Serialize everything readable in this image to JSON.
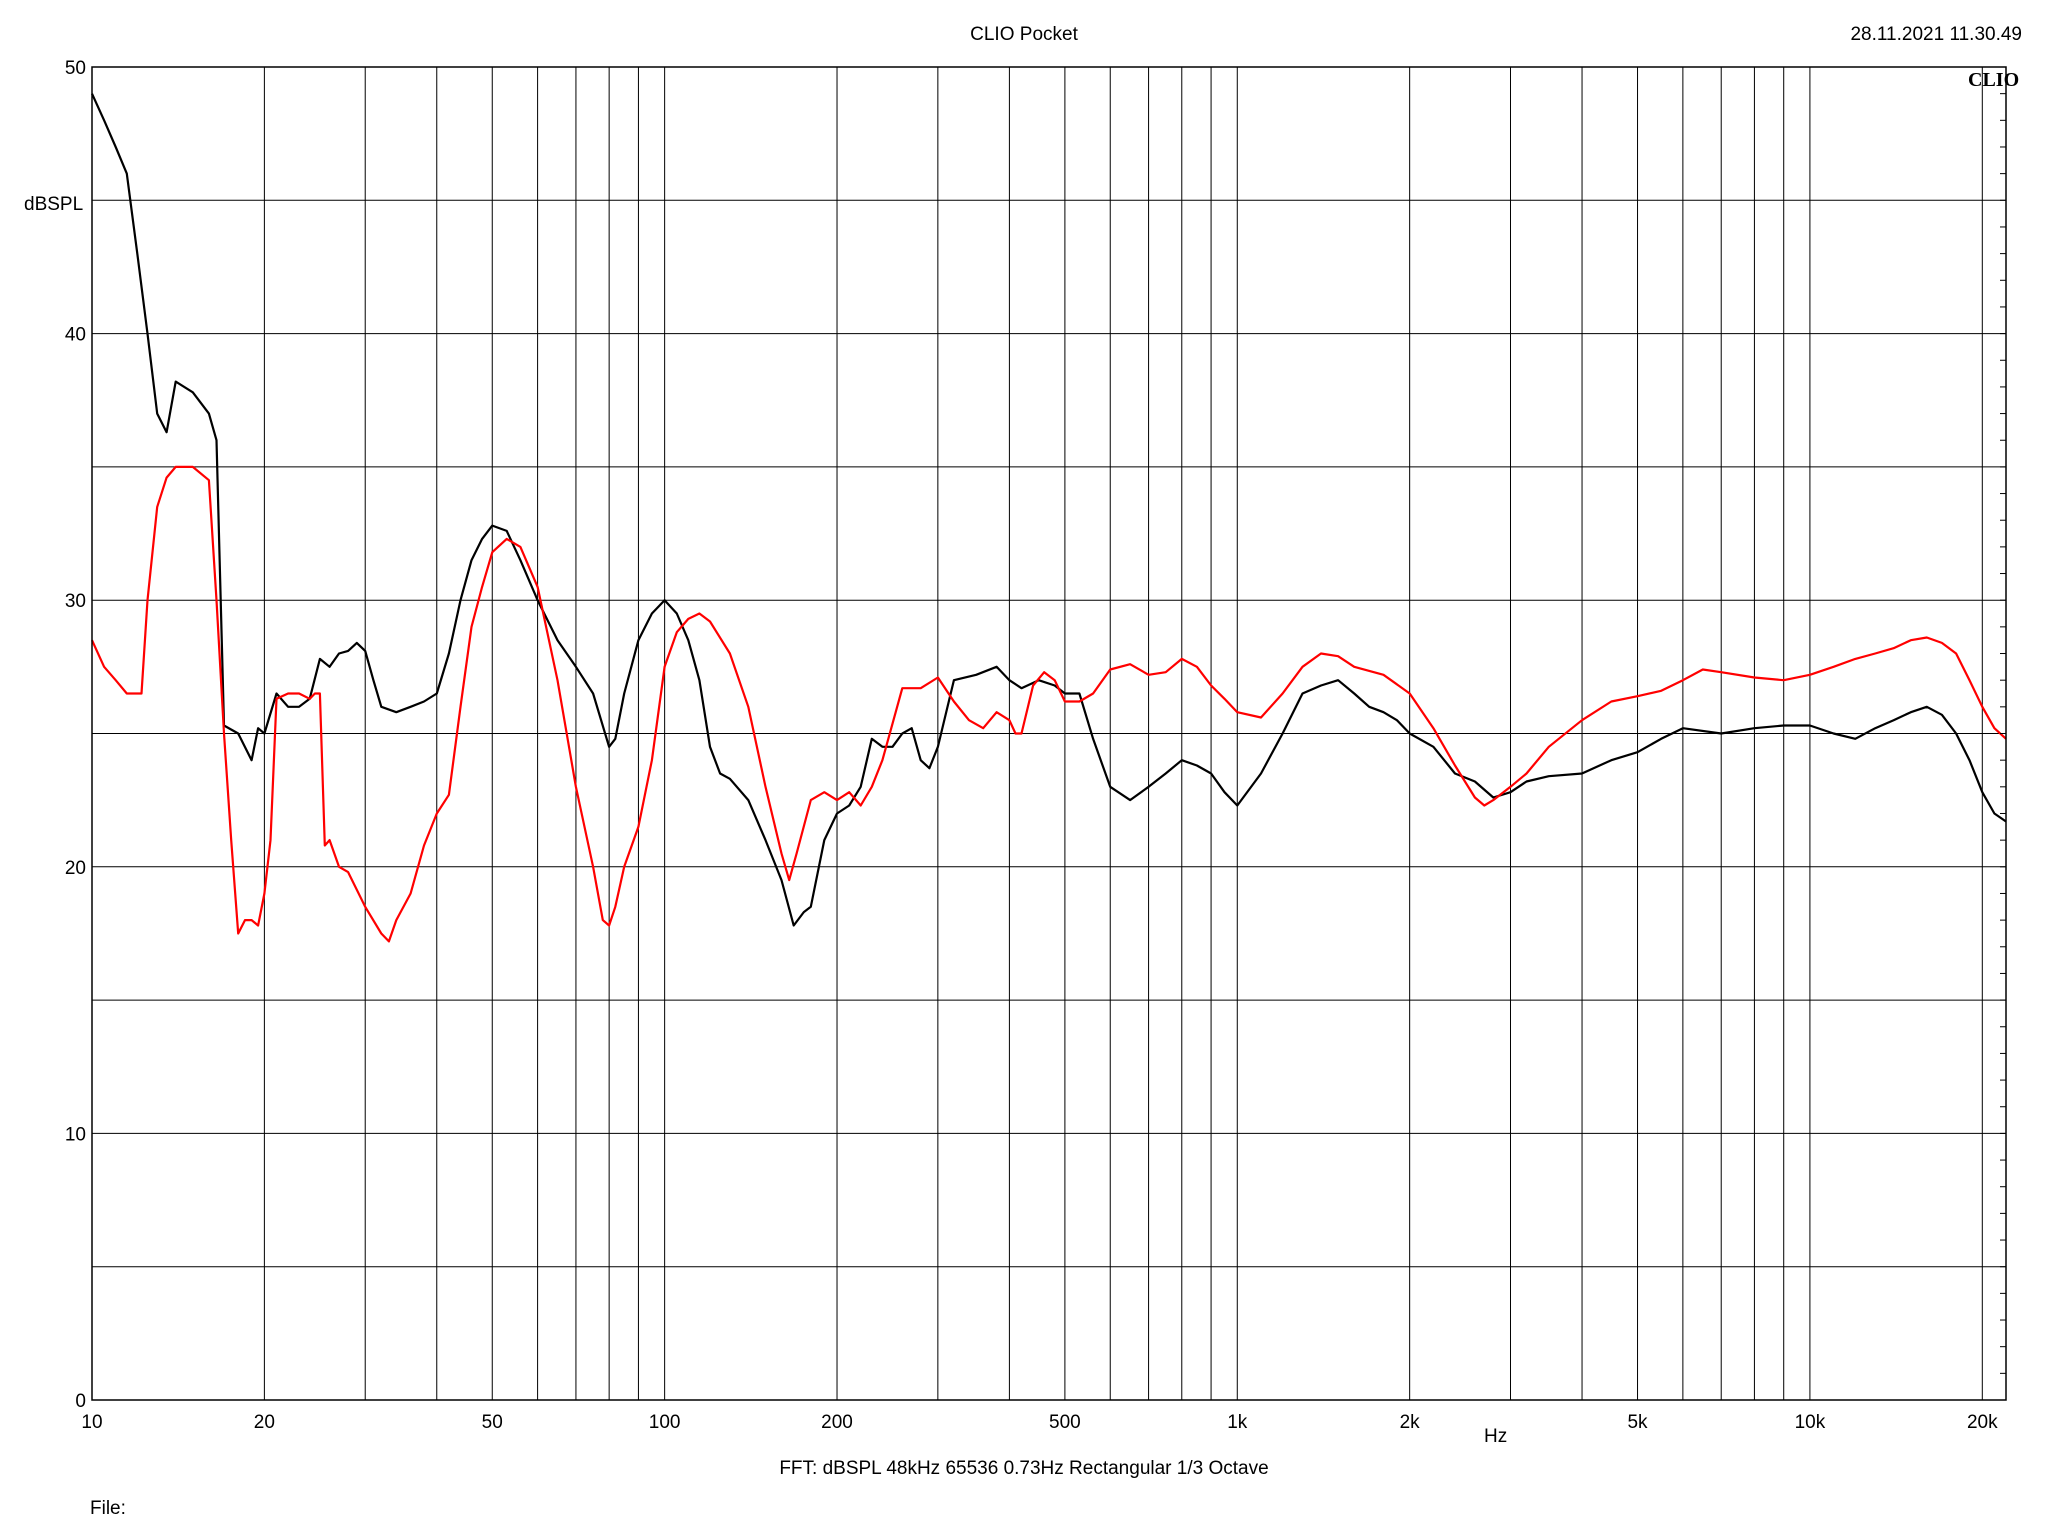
{
  "header": {
    "title": "CLIO Pocket",
    "timestamp": "28.11.2021 11.30.49"
  },
  "brand_label": "CLIO",
  "footer": {
    "settings": "FFT:  dBSPL  48kHz   65536  0.73Hz  Rectangular  1/3 Octave",
    "file_label": "File:"
  },
  "colors": {
    "series_black": "#000000",
    "series_red": "#ff0000",
    "grid": "#000000"
  },
  "chart_data": {
    "type": "line",
    "title": "CLIO Pocket",
    "xlabel": "Hz",
    "ylabel": "dBSPL",
    "x_scale": "log",
    "xlim": [
      10,
      22000
    ],
    "ylim": [
      0,
      50
    ],
    "grid": true,
    "x_tick_labels": [
      {
        "value": 10,
        "label": "10"
      },
      {
        "value": 20,
        "label": "20"
      },
      {
        "value": 50,
        "label": "50"
      },
      {
        "value": 100,
        "label": "100"
      },
      {
        "value": 200,
        "label": "200"
      },
      {
        "value": 500,
        "label": "500"
      },
      {
        "value": 1000,
        "label": "1k"
      },
      {
        "value": 2000,
        "label": "2k"
      },
      {
        "value": 5000,
        "label": "5k"
      },
      {
        "value": 10000,
        "label": "10k"
      },
      {
        "value": 20000,
        "label": "20k"
      }
    ],
    "y_tick_labels": [
      {
        "value": 0,
        "label": "0"
      },
      {
        "value": 10,
        "label": "10"
      },
      {
        "value": 20,
        "label": "20"
      },
      {
        "value": 30,
        "label": "30"
      },
      {
        "value": 40,
        "label": "40"
      },
      {
        "value": 50,
        "label": "50"
      }
    ],
    "series": [
      {
        "color": "#000000",
        "points": [
          [
            10,
            49
          ],
          [
            10.5,
            48
          ],
          [
            11,
            47
          ],
          [
            11.5,
            46
          ],
          [
            12,
            43
          ],
          [
            12.5,
            40
          ],
          [
            13,
            37
          ],
          [
            13.5,
            36.3
          ],
          [
            14,
            38.2
          ],
          [
            15,
            37.8
          ],
          [
            16,
            37
          ],
          [
            16.5,
            36
          ],
          [
            17,
            25.3
          ],
          [
            18,
            25
          ],
          [
            19,
            24
          ],
          [
            19.5,
            25.2
          ],
          [
            20,
            25
          ],
          [
            21,
            26.5
          ],
          [
            22,
            26
          ],
          [
            23,
            26
          ],
          [
            24,
            26.3
          ],
          [
            25,
            27.8
          ],
          [
            26,
            27.5
          ],
          [
            27,
            28
          ],
          [
            28,
            28.1
          ],
          [
            29,
            28.4
          ],
          [
            30,
            28.1
          ],
          [
            31,
            27
          ],
          [
            32,
            26
          ],
          [
            34,
            25.8
          ],
          [
            36,
            26
          ],
          [
            38,
            26.2
          ],
          [
            40,
            26.5
          ],
          [
            42,
            28
          ],
          [
            44,
            30
          ],
          [
            46,
            31.5
          ],
          [
            48,
            32.3
          ],
          [
            50,
            32.8
          ],
          [
            53,
            32.6
          ],
          [
            56,
            31.5
          ],
          [
            60,
            30
          ],
          [
            65,
            28.5
          ],
          [
            70,
            27.5
          ],
          [
            75,
            26.5
          ],
          [
            80,
            24.5
          ],
          [
            82,
            24.8
          ],
          [
            85,
            26.5
          ],
          [
            90,
            28.5
          ],
          [
            95,
            29.5
          ],
          [
            100,
            30
          ],
          [
            105,
            29.5
          ],
          [
            110,
            28.5
          ],
          [
            115,
            27
          ],
          [
            120,
            24.5
          ],
          [
            125,
            23.5
          ],
          [
            130,
            23.3
          ],
          [
            140,
            22.5
          ],
          [
            150,
            21
          ],
          [
            160,
            19.5
          ],
          [
            168,
            17.8
          ],
          [
            175,
            18.3
          ],
          [
            180,
            18.5
          ],
          [
            190,
            21
          ],
          [
            200,
            22
          ],
          [
            210,
            22.3
          ],
          [
            220,
            23
          ],
          [
            230,
            24.8
          ],
          [
            240,
            24.5
          ],
          [
            250,
            24.5
          ],
          [
            260,
            25
          ],
          [
            270,
            25.2
          ],
          [
            280,
            24
          ],
          [
            290,
            23.7
          ],
          [
            300,
            24.5
          ],
          [
            320,
            27
          ],
          [
            350,
            27.2
          ],
          [
            380,
            27.5
          ],
          [
            400,
            27
          ],
          [
            420,
            26.7
          ],
          [
            450,
            27
          ],
          [
            480,
            26.8
          ],
          [
            500,
            26.5
          ],
          [
            530,
            26.5
          ],
          [
            560,
            24.8
          ],
          [
            600,
            23
          ],
          [
            650,
            22.5
          ],
          [
            700,
            23
          ],
          [
            750,
            23.5
          ],
          [
            800,
            24
          ],
          [
            850,
            23.8
          ],
          [
            900,
            23.5
          ],
          [
            950,
            22.8
          ],
          [
            1000,
            22.3
          ],
          [
            1100,
            23.5
          ],
          [
            1200,
            25
          ],
          [
            1300,
            26.5
          ],
          [
            1400,
            26.8
          ],
          [
            1500,
            27
          ],
          [
            1600,
            26.5
          ],
          [
            1700,
            26
          ],
          [
            1800,
            25.8
          ],
          [
            1900,
            25.5
          ],
          [
            2000,
            25
          ],
          [
            2200,
            24.5
          ],
          [
            2400,
            23.5
          ],
          [
            2600,
            23.2
          ],
          [
            2800,
            22.6
          ],
          [
            3000,
            22.8
          ],
          [
            3200,
            23.2
          ],
          [
            3500,
            23.4
          ],
          [
            4000,
            23.5
          ],
          [
            4500,
            24
          ],
          [
            5000,
            24.3
          ],
          [
            5500,
            24.8
          ],
          [
            6000,
            25.2
          ],
          [
            7000,
            25
          ],
          [
            8000,
            25.2
          ],
          [
            9000,
            25.3
          ],
          [
            10000,
            25.3
          ],
          [
            11000,
            25
          ],
          [
            12000,
            24.8
          ],
          [
            13000,
            25.2
          ],
          [
            14000,
            25.5
          ],
          [
            15000,
            25.8
          ],
          [
            16000,
            26
          ],
          [
            17000,
            25.7
          ],
          [
            18000,
            25
          ],
          [
            19000,
            24
          ],
          [
            20000,
            22.8
          ],
          [
            21000,
            22
          ],
          [
            22000,
            21.7
          ]
        ]
      },
      {
        "color": "#ff0000",
        "points": [
          [
            10,
            28.5
          ],
          [
            10.5,
            27.5
          ],
          [
            11,
            27
          ],
          [
            11.5,
            26.5
          ],
          [
            12,
            26.5
          ],
          [
            12.2,
            26.5
          ],
          [
            12.5,
            30
          ],
          [
            13,
            33.5
          ],
          [
            13.5,
            34.6
          ],
          [
            14,
            35
          ],
          [
            15,
            35
          ],
          [
            16,
            34.5
          ],
          [
            16.5,
            30
          ],
          [
            17,
            25
          ],
          [
            17.5,
            21
          ],
          [
            18,
            17.5
          ],
          [
            18.5,
            18
          ],
          [
            19,
            18
          ],
          [
            19.5,
            17.8
          ],
          [
            20,
            19
          ],
          [
            20.5,
            21
          ],
          [
            21,
            26.3
          ],
          [
            22,
            26.5
          ],
          [
            23,
            26.5
          ],
          [
            24,
            26.3
          ],
          [
            24.5,
            26.5
          ],
          [
            25,
            26.5
          ],
          [
            25.5,
            20.8
          ],
          [
            26,
            21
          ],
          [
            27,
            20
          ],
          [
            28,
            19.8
          ],
          [
            30,
            18.5
          ],
          [
            32,
            17.5
          ],
          [
            33,
            17.2
          ],
          [
            34,
            18
          ],
          [
            36,
            19
          ],
          [
            38,
            20.8
          ],
          [
            40,
            22
          ],
          [
            42,
            22.7
          ],
          [
            44,
            26
          ],
          [
            46,
            29
          ],
          [
            48,
            30.5
          ],
          [
            50,
            31.8
          ],
          [
            53,
            32.3
          ],
          [
            56,
            32
          ],
          [
            60,
            30.5
          ],
          [
            65,
            27
          ],
          [
            70,
            23
          ],
          [
            75,
            20
          ],
          [
            78,
            18
          ],
          [
            80,
            17.8
          ],
          [
            82,
            18.5
          ],
          [
            85,
            20
          ],
          [
            90,
            21.5
          ],
          [
            95,
            24
          ],
          [
            100,
            27.5
          ],
          [
            105,
            28.8
          ],
          [
            110,
            29.3
          ],
          [
            115,
            29.5
          ],
          [
            120,
            29.2
          ],
          [
            130,
            28
          ],
          [
            140,
            26
          ],
          [
            150,
            23
          ],
          [
            160,
            20.5
          ],
          [
            165,
            19.5
          ],
          [
            170,
            20.5
          ],
          [
            180,
            22.5
          ],
          [
            190,
            22.8
          ],
          [
            200,
            22.5
          ],
          [
            210,
            22.8
          ],
          [
            220,
            22.3
          ],
          [
            230,
            23
          ],
          [
            240,
            24
          ],
          [
            260,
            26.7
          ],
          [
            280,
            26.7
          ],
          [
            300,
            27.1
          ],
          [
            320,
            26.2
          ],
          [
            340,
            25.5
          ],
          [
            360,
            25.2
          ],
          [
            380,
            25.8
          ],
          [
            400,
            25.5
          ],
          [
            410,
            25
          ],
          [
            420,
            25
          ],
          [
            440,
            26.8
          ],
          [
            460,
            27.3
          ],
          [
            480,
            27
          ],
          [
            500,
            26.2
          ],
          [
            530,
            26.2
          ],
          [
            560,
            26.5
          ],
          [
            600,
            27.4
          ],
          [
            650,
            27.6
          ],
          [
            700,
            27.2
          ],
          [
            750,
            27.3
          ],
          [
            800,
            27.8
          ],
          [
            850,
            27.5
          ],
          [
            900,
            26.8
          ],
          [
            950,
            26.3
          ],
          [
            1000,
            25.8
          ],
          [
            1100,
            25.6
          ],
          [
            1200,
            26.5
          ],
          [
            1300,
            27.5
          ],
          [
            1400,
            28
          ],
          [
            1500,
            27.9
          ],
          [
            1600,
            27.5
          ],
          [
            1800,
            27.2
          ],
          [
            2000,
            26.5
          ],
          [
            2200,
            25.2
          ],
          [
            2400,
            23.8
          ],
          [
            2600,
            22.6
          ],
          [
            2700,
            22.3
          ],
          [
            2800,
            22.5
          ],
          [
            3000,
            23
          ],
          [
            3200,
            23.5
          ],
          [
            3500,
            24.5
          ],
          [
            4000,
            25.5
          ],
          [
            4500,
            26.2
          ],
          [
            5000,
            26.4
          ],
          [
            5500,
            26.6
          ],
          [
            6000,
            27
          ],
          [
            6500,
            27.4
          ],
          [
            7000,
            27.3
          ],
          [
            8000,
            27.1
          ],
          [
            9000,
            27
          ],
          [
            10000,
            27.2
          ],
          [
            11000,
            27.5
          ],
          [
            12000,
            27.8
          ],
          [
            13000,
            28
          ],
          [
            14000,
            28.2
          ],
          [
            15000,
            28.5
          ],
          [
            16000,
            28.6
          ],
          [
            17000,
            28.4
          ],
          [
            18000,
            28
          ],
          [
            19000,
            27
          ],
          [
            20000,
            26
          ],
          [
            21000,
            25.2
          ],
          [
            22000,
            24.8
          ]
        ]
      }
    ]
  }
}
